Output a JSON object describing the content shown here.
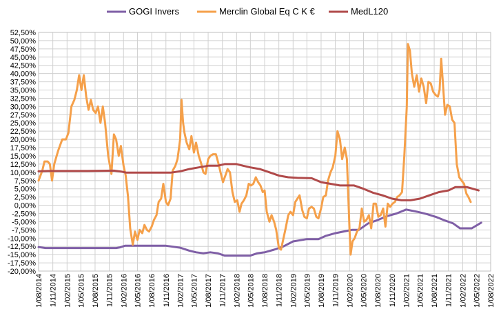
{
  "chart_data": {
    "type": "line",
    "title": "",
    "xlabel": "",
    "ylabel": "",
    "grid": true,
    "legend_position": "top",
    "x_type": "date",
    "xlim": [
      "2014-08-01",
      "2022-08-01"
    ],
    "ylim": [
      -20,
      52.5
    ],
    "y_tick_step": 2.5,
    "x_ticks": [
      "1/08/2014",
      "1/11/2014",
      "1/02/2015",
      "1/05/2015",
      "1/08/2015",
      "1/11/2015",
      "1/02/2016",
      "1/05/2016",
      "1/08/2016",
      "1/11/2016",
      "1/02/2017",
      "1/05/2017",
      "1/08/2017",
      "1/11/2017",
      "1/02/2018",
      "1/05/2018",
      "1/08/2018",
      "1/11/2018",
      "1/02/2019",
      "1/05/2019",
      "1/08/2019",
      "1/11/2019",
      "1/02/2020",
      "1/05/2020",
      "1/08/2020",
      "1/11/2020",
      "1/02/2021",
      "1/05/2021",
      "1/08/2021",
      "1/11/2021",
      "1/02/2022",
      "1/05/2022",
      "1/08/2022"
    ],
    "y_ticks": [
      "-20,00%",
      "-17,50%",
      "-15,00%",
      "-12,50%",
      "-10,00%",
      "-7,50%",
      "-5,00%",
      "-2,50%",
      "0,00%",
      "2,50%",
      "5,00%",
      "7,50%",
      "10,00%",
      "12,50%",
      "15,00%",
      "17,50%",
      "20,00%",
      "22,50%",
      "25,00%",
      "27,50%",
      "30,00%",
      "32,50%",
      "35,00%",
      "37,50%",
      "40,00%",
      "42,50%",
      "45,00%",
      "47,50%",
      "50,00%",
      "52,50%"
    ],
    "series": [
      {
        "name": "GOGI Invers",
        "color": "#7f5fa6",
        "points": [
          [
            "2014-08-01",
            -12.7
          ],
          [
            "2014-09-15",
            -13.0
          ],
          [
            "2015-06-01",
            -13.0
          ],
          [
            "2015-12-15",
            -13.0
          ],
          [
            "2016-01-10",
            -12.8
          ],
          [
            "2016-02-10",
            -12.3
          ],
          [
            "2016-06-01",
            -12.3
          ],
          [
            "2016-11-01",
            -12.3
          ],
          [
            "2017-02-01",
            -12.9
          ],
          [
            "2017-04-01",
            -13.8
          ],
          [
            "2017-05-15",
            -14.3
          ],
          [
            "2017-07-01",
            -14.6
          ],
          [
            "2017-08-15",
            -14.3
          ],
          [
            "2017-10-01",
            -14.6
          ],
          [
            "2017-11-15",
            -15.3
          ],
          [
            "2018-05-01",
            -15.3
          ],
          [
            "2018-06-15",
            -14.6
          ],
          [
            "2018-08-01",
            -14.3
          ],
          [
            "2018-10-01",
            -13.5
          ],
          [
            "2018-12-01",
            -12.5
          ],
          [
            "2019-02-01",
            -11.0
          ],
          [
            "2019-05-01",
            -10.3
          ],
          [
            "2019-07-15",
            -10.3
          ],
          [
            "2019-09-01",
            -9.3
          ],
          [
            "2019-11-01",
            -8.5
          ],
          [
            "2020-02-15",
            -7.5
          ],
          [
            "2020-04-01",
            -7.5
          ],
          [
            "2020-06-01",
            -5.5
          ],
          [
            "2020-08-01",
            -4.5
          ],
          [
            "2020-10-01",
            -3.3
          ],
          [
            "2020-12-01",
            -2.5
          ],
          [
            "2021-02-01",
            -1.3
          ],
          [
            "2021-04-15",
            -2.0
          ],
          [
            "2021-06-15",
            -2.7
          ],
          [
            "2021-08-15",
            -3.6
          ],
          [
            "2021-10-01",
            -4.5
          ],
          [
            "2021-12-01",
            -5.5
          ],
          [
            "2022-01-15",
            -7.0
          ],
          [
            "2022-04-01",
            -7.0
          ],
          [
            "2022-06-01",
            -5.3
          ]
        ]
      },
      {
        "name": "Merclin Global Eq C K €",
        "color": "#f5a04a",
        "points": [
          [
            "2014-08-01",
            7.5
          ],
          [
            "2014-08-25",
            10.5
          ],
          [
            "2014-09-08",
            13.3
          ],
          [
            "2014-09-29",
            13.3
          ],
          [
            "2014-10-13",
            12.5
          ],
          [
            "2014-10-27",
            7.5
          ],
          [
            "2014-11-10",
            12.5
          ],
          [
            "2014-12-05",
            16.5
          ],
          [
            "2015-01-01",
            20.0
          ],
          [
            "2015-01-25",
            20.0
          ],
          [
            "2015-02-10",
            22.0
          ],
          [
            "2015-03-01",
            30.0
          ],
          [
            "2015-03-20",
            32.0
          ],
          [
            "2015-04-05",
            35.0
          ],
          [
            "2015-04-20",
            39.5
          ],
          [
            "2015-05-05",
            35.0
          ],
          [
            "2015-05-20",
            39.5
          ],
          [
            "2015-06-05",
            33.0
          ],
          [
            "2015-06-20",
            29.0
          ],
          [
            "2015-07-05",
            32.0
          ],
          [
            "2015-07-20",
            29.0
          ],
          [
            "2015-08-05",
            28.0
          ],
          [
            "2015-08-20",
            30.0
          ],
          [
            "2015-09-05",
            25.0
          ],
          [
            "2015-09-20",
            30.0
          ],
          [
            "2015-10-05",
            25.0
          ],
          [
            "2015-10-25",
            15.0
          ],
          [
            "2015-11-15",
            9.5
          ],
          [
            "2015-12-01",
            21.5
          ],
          [
            "2015-12-15",
            20.0
          ],
          [
            "2016-01-01",
            15.0
          ],
          [
            "2016-01-15",
            18.0
          ],
          [
            "2016-02-01",
            12.0
          ],
          [
            "2016-02-15",
            9.0
          ],
          [
            "2016-03-01",
            2.5
          ],
          [
            "2016-03-15",
            -7.0
          ],
          [
            "2016-04-01",
            -12.0
          ],
          [
            "2016-04-15",
            -8.0
          ],
          [
            "2016-05-01",
            -10.5
          ],
          [
            "2016-05-15",
            -7.5
          ],
          [
            "2016-06-01",
            -8.5
          ],
          [
            "2016-06-15",
            -6.0
          ],
          [
            "2016-07-01",
            -7.5
          ],
          [
            "2016-07-15",
            -8.0
          ],
          [
            "2016-08-01",
            -6.5
          ],
          [
            "2016-08-15",
            -4.5
          ],
          [
            "2016-09-01",
            -3.0
          ],
          [
            "2016-09-15",
            1.0
          ],
          [
            "2016-10-01",
            2.0
          ],
          [
            "2016-10-15",
            6.5
          ],
          [
            "2016-11-01",
            1.0
          ],
          [
            "2016-11-15",
            0.0
          ],
          [
            "2016-12-01",
            2.0
          ],
          [
            "2016-12-15",
            10.5
          ],
          [
            "2017-01-01",
            12.0
          ],
          [
            "2017-01-15",
            14.0
          ],
          [
            "2017-02-01",
            20.0
          ],
          [
            "2017-02-10",
            32.0
          ],
          [
            "2017-02-20",
            25.0
          ],
          [
            "2017-03-01",
            22.0
          ],
          [
            "2017-03-15",
            19.0
          ],
          [
            "2017-04-01",
            17.0
          ],
          [
            "2017-04-15",
            21.0
          ],
          [
            "2017-05-01",
            16.0
          ],
          [
            "2017-05-15",
            19.0
          ],
          [
            "2017-06-01",
            15.0
          ],
          [
            "2017-06-15",
            13.0
          ],
          [
            "2017-07-01",
            10.0
          ],
          [
            "2017-07-15",
            9.5
          ],
          [
            "2017-08-01",
            14.0
          ],
          [
            "2017-08-15",
            15.0
          ],
          [
            "2017-09-01",
            15.5
          ],
          [
            "2017-09-20",
            15.5
          ],
          [
            "2017-10-05",
            13.0
          ],
          [
            "2017-10-20",
            10.0
          ],
          [
            "2017-11-05",
            7.0
          ],
          [
            "2017-11-20",
            9.0
          ],
          [
            "2017-12-05",
            11.0
          ],
          [
            "2017-12-20",
            10.0
          ],
          [
            "2018-01-05",
            4.0
          ],
          [
            "2018-01-20",
            1.0
          ],
          [
            "2018-02-05",
            1.5
          ],
          [
            "2018-02-20",
            -2.0
          ],
          [
            "2018-03-05",
            0.5
          ],
          [
            "2018-03-20",
            1.5
          ],
          [
            "2018-04-05",
            3.0
          ],
          [
            "2018-04-20",
            6.5
          ],
          [
            "2018-05-05",
            6.0
          ],
          [
            "2018-05-20",
            6.5
          ],
          [
            "2018-06-05",
            8.5
          ],
          [
            "2018-06-20",
            7.0
          ],
          [
            "2018-07-05",
            6.0
          ],
          [
            "2018-07-20",
            4.0
          ],
          [
            "2018-08-01",
            4.5
          ],
          [
            "2018-08-15",
            -2.0
          ],
          [
            "2018-09-01",
            -5.0
          ],
          [
            "2018-09-15",
            -3.0
          ],
          [
            "2018-10-01",
            -5.0
          ],
          [
            "2018-10-15",
            -7.5
          ],
          [
            "2018-11-01",
            -13.0
          ],
          [
            "2018-11-15",
            -13.5
          ],
          [
            "2018-12-01",
            -10.0
          ],
          [
            "2018-12-15",
            -7.0
          ],
          [
            "2019-01-01",
            -3.0
          ],
          [
            "2019-01-15",
            -2.0
          ],
          [
            "2019-02-01",
            -3.0
          ],
          [
            "2019-02-15",
            1.0
          ],
          [
            "2019-03-01",
            2.0
          ],
          [
            "2019-03-15",
            3.0
          ],
          [
            "2019-04-01",
            -1.5
          ],
          [
            "2019-04-15",
            -3.5
          ],
          [
            "2019-05-01",
            -4.0
          ],
          [
            "2019-05-15",
            -1.0
          ],
          [
            "2019-06-01",
            -0.5
          ],
          [
            "2019-06-15",
            -1.0
          ],
          [
            "2019-07-01",
            -3.5
          ],
          [
            "2019-07-15",
            -4.0
          ],
          [
            "2019-08-01",
            -1.0
          ],
          [
            "2019-08-15",
            2.5
          ],
          [
            "2019-09-01",
            3.0
          ],
          [
            "2019-09-15",
            7.5
          ],
          [
            "2019-10-01",
            10.0
          ],
          [
            "2019-10-15",
            11.5
          ],
          [
            "2019-11-01",
            15.0
          ],
          [
            "2019-11-15",
            22.5
          ],
          [
            "2019-12-01",
            20.0
          ],
          [
            "2019-12-15",
            14.0
          ],
          [
            "2020-01-01",
            17.5
          ],
          [
            "2020-01-15",
            14.0
          ],
          [
            "2020-02-01",
            -8.0
          ],
          [
            "2020-02-08",
            -15.0
          ],
          [
            "2020-02-20",
            -11.0
          ],
          [
            "2020-03-05",
            -10.0
          ],
          [
            "2020-03-20",
            -8.0
          ],
          [
            "2020-04-05",
            -7.0
          ],
          [
            "2020-04-20",
            -1.0
          ],
          [
            "2020-05-05",
            -5.0
          ],
          [
            "2020-05-20",
            -4.5
          ],
          [
            "2020-06-05",
            -3.0
          ],
          [
            "2020-06-20",
            -7.0
          ],
          [
            "2020-07-05",
            0.5
          ],
          [
            "2020-07-20",
            0.5
          ],
          [
            "2020-08-05",
            -3.5
          ],
          [
            "2020-08-20",
            -3.0
          ],
          [
            "2020-09-05",
            -1.0
          ],
          [
            "2020-09-20",
            -6.5
          ],
          [
            "2020-10-05",
            0.5
          ],
          [
            "2020-10-20",
            -0.5
          ],
          [
            "2020-11-05",
            0.5
          ],
          [
            "2020-11-20",
            1.0
          ],
          [
            "2020-12-05",
            2.5
          ],
          [
            "2020-12-20",
            3.0
          ],
          [
            "2021-01-05",
            4.0
          ],
          [
            "2021-01-20",
            15.0
          ],
          [
            "2021-02-05",
            30.0
          ],
          [
            "2021-02-12",
            49.0
          ],
          [
            "2021-02-25",
            47.0
          ],
          [
            "2021-03-10",
            40.0
          ],
          [
            "2021-03-25",
            36.0
          ],
          [
            "2021-04-10",
            39.5
          ],
          [
            "2021-04-25",
            34.5
          ],
          [
            "2021-05-10",
            38.5
          ],
          [
            "2021-05-25",
            36.0
          ],
          [
            "2021-06-10",
            31.0
          ],
          [
            "2021-06-25",
            37.5
          ],
          [
            "2021-07-10",
            37.0
          ],
          [
            "2021-07-25",
            34.5
          ],
          [
            "2021-08-10",
            33.5
          ],
          [
            "2021-08-25",
            33.0
          ],
          [
            "2021-09-05",
            35.0
          ],
          [
            "2021-09-15",
            44.5
          ],
          [
            "2021-09-25",
            38.0
          ],
          [
            "2021-10-10",
            27.5
          ],
          [
            "2021-10-25",
            30.5
          ],
          [
            "2021-11-10",
            30.0
          ],
          [
            "2021-11-25",
            26.0
          ],
          [
            "2021-12-10",
            25.0
          ],
          [
            "2021-12-25",
            12.5
          ],
          [
            "2022-01-10",
            8.5
          ],
          [
            "2022-01-25",
            7.5
          ],
          [
            "2022-02-10",
            6.5
          ],
          [
            "2022-02-25",
            3.5
          ],
          [
            "2022-03-10",
            2.5
          ],
          [
            "2022-03-25",
            1.0
          ]
        ]
      },
      {
        "name": "MedL120",
        "color": "#b04a4a",
        "points": [
          [
            "2014-08-01",
            10.3
          ],
          [
            "2014-10-01",
            10.4
          ],
          [
            "2015-06-01",
            10.4
          ],
          [
            "2015-12-01",
            10.5
          ],
          [
            "2016-01-20",
            10.2
          ],
          [
            "2016-02-20",
            9.9
          ],
          [
            "2016-07-01",
            9.9
          ],
          [
            "2016-12-01",
            9.9
          ],
          [
            "2017-02-01",
            10.3
          ],
          [
            "2017-04-01",
            11.0
          ],
          [
            "2017-06-01",
            11.5
          ],
          [
            "2017-08-01",
            12.0
          ],
          [
            "2017-10-01",
            12.0
          ],
          [
            "2017-11-15",
            12.5
          ],
          [
            "2018-02-01",
            12.5
          ],
          [
            "2018-03-15",
            12.0
          ],
          [
            "2018-05-01",
            11.5
          ],
          [
            "2018-07-01",
            11.0
          ],
          [
            "2018-09-01",
            10.0
          ],
          [
            "2018-11-01",
            9.0
          ],
          [
            "2019-01-01",
            8.5
          ],
          [
            "2019-03-01",
            8.3
          ],
          [
            "2019-06-01",
            8.2
          ],
          [
            "2019-08-01",
            7.0
          ],
          [
            "2019-10-01",
            6.5
          ],
          [
            "2019-12-01",
            6.0
          ],
          [
            "2020-03-01",
            6.0
          ],
          [
            "2020-05-01",
            5.0
          ],
          [
            "2020-07-01",
            3.8
          ],
          [
            "2020-09-01",
            3.0
          ],
          [
            "2020-11-01",
            2.0
          ],
          [
            "2021-01-01",
            1.5
          ],
          [
            "2021-03-01",
            1.5
          ],
          [
            "2021-05-01",
            2.0
          ],
          [
            "2021-07-01",
            3.0
          ],
          [
            "2021-09-01",
            4.0
          ],
          [
            "2021-11-01",
            4.5
          ],
          [
            "2021-12-15",
            5.5
          ],
          [
            "2022-03-01",
            5.5
          ],
          [
            "2022-05-15",
            4.5
          ]
        ]
      }
    ]
  }
}
